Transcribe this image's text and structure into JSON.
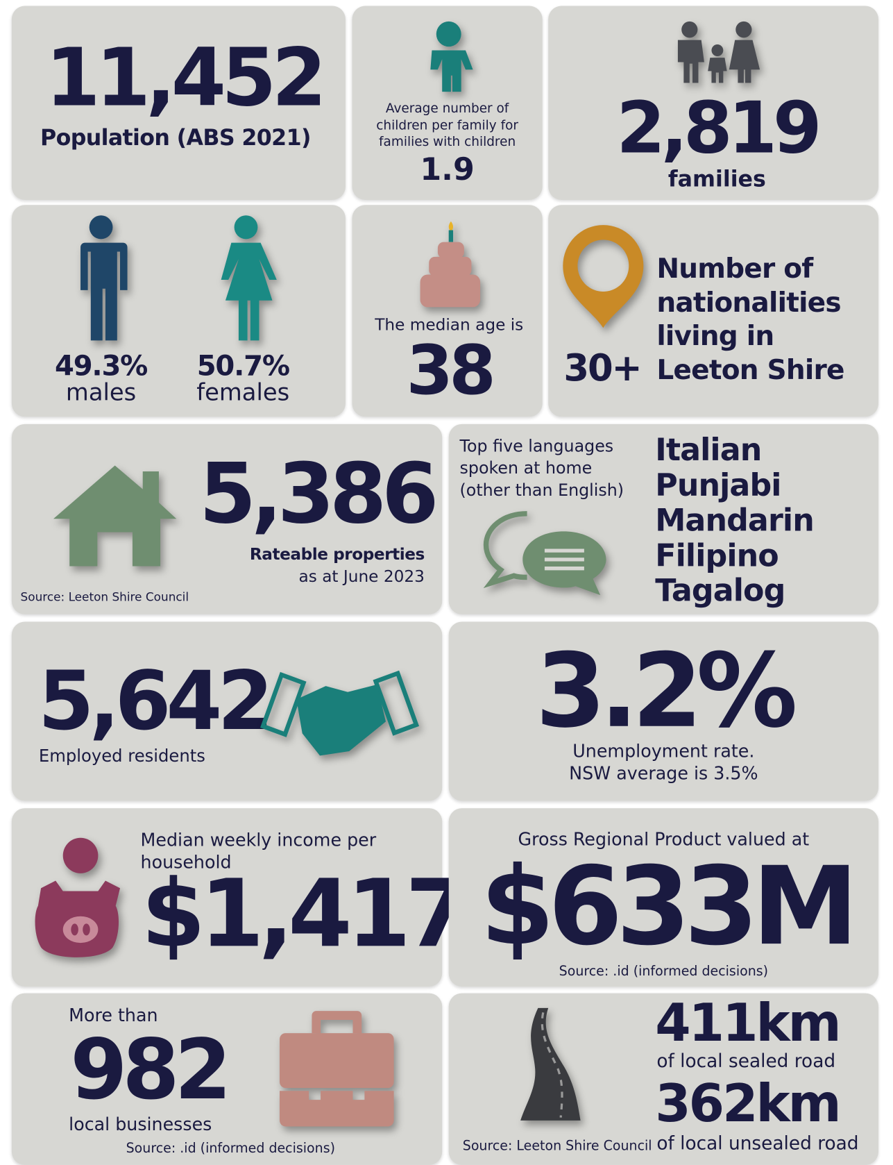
{
  "population": {
    "value": "11,452",
    "label": "Population (ABS 2021)"
  },
  "children": {
    "label": "Average number of children per family for families with children",
    "value": "1.9"
  },
  "families": {
    "value": "2,819",
    "label": "families"
  },
  "gender": {
    "males": {
      "value": "49.3%",
      "label": "males"
    },
    "females": {
      "value": "50.7%",
      "label": "females"
    }
  },
  "median_age": {
    "label": "The median age is",
    "value": "38"
  },
  "nationalities": {
    "value": "30+",
    "label": "Number of nationalities living in Leeton Shire"
  },
  "properties": {
    "value": "5,386",
    "label": "Rateable properties",
    "date": "as at June 2023",
    "source": "Source: Leeton Shire Council"
  },
  "languages": {
    "label": "Top five languages spoken at home (other than English)",
    "items": [
      "Italian",
      "Punjabi",
      "Mandarin",
      "Filipino",
      "Tagalog"
    ]
  },
  "employed": {
    "value": "5,642",
    "label": "Employed residents"
  },
  "unemployment": {
    "value": "3.2%",
    "label": "Unemployment rate.",
    "note": "NSW average is 3.5%"
  },
  "income": {
    "label": "Median weekly income per household",
    "value": "$1,417"
  },
  "grp": {
    "label": "Gross Regional Product valued at",
    "value": "$633M",
    "source": "Source: .id (informed decisions)"
  },
  "businesses": {
    "prefix": "More than",
    "value": "982",
    "label": "local businesses",
    "source": "Source: .id (informed decisions)"
  },
  "roads": {
    "sealed": {
      "value": "411km",
      "label": "of local sealed road"
    },
    "unsealed": {
      "value": "362km",
      "label": "of local unsealed road"
    },
    "source": "Source: Leeton Shire Council"
  }
}
